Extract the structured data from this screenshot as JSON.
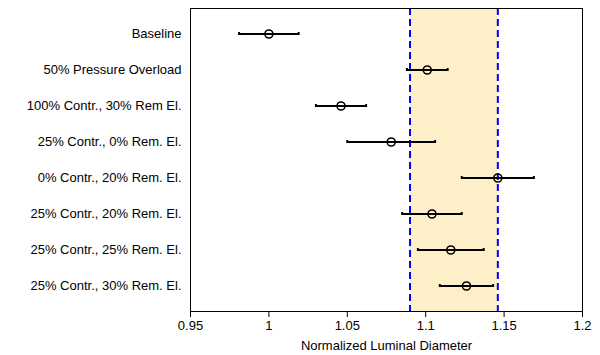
{
  "chart_data": {
    "type": "scatter",
    "orientation": "horizontal",
    "x_label": "Normalized Luminal Diameter",
    "categories": [
      "Baseline",
      "50% Pressure Overload",
      "100% Contr., 30% Rem El.",
      "25% Contr., 0% Rem. El.",
      "0% Contr., 20% Rem. El.",
      "25% Contr., 20% Rem. El.",
      "25% Contr., 25% Rem. El.",
      "25% Contr., 30% Rem. El."
    ],
    "values": [
      1.0,
      1.101,
      1.046,
      1.078,
      1.146,
      1.104,
      1.116,
      1.126
    ],
    "errors": [
      0.019,
      0.013,
      0.016,
      0.028,
      0.023,
      0.019,
      0.021,
      0.017
    ],
    "color": "#000000",
    "marker": "circle",
    "band": {
      "from": 1.09,
      "to": 1.146,
      "color": "#fdf0c8",
      "line_color": "#0000ff",
      "line_style": "dashed"
    },
    "xlim": [
      0.95,
      1.2
    ],
    "xticks": [
      0.95,
      1,
      1.05,
      1.1,
      1.15,
      1.2
    ],
    "grid": false
  }
}
